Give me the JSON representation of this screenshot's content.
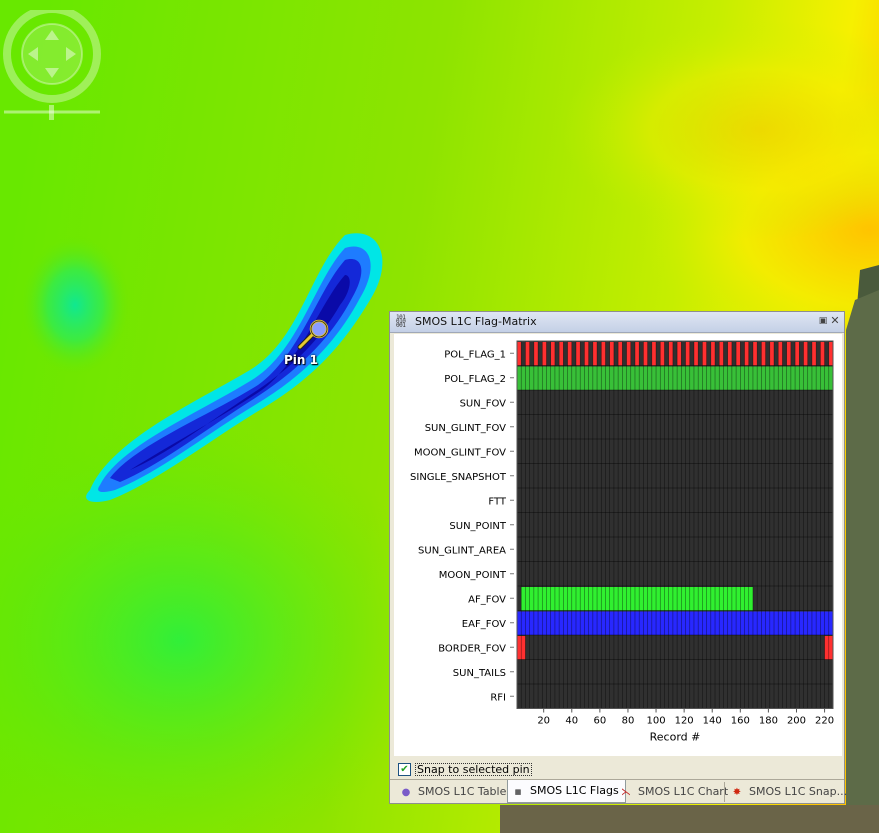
{
  "map": {
    "pin_label": "Pin 1",
    "colors": [
      "#0000c8",
      "#1e64ff",
      "#00e6e6",
      "#00ff64",
      "#7ee000",
      "#c8f000",
      "#ffff00",
      "#ffc800"
    ]
  },
  "panel": {
    "title": "SMOS L1C Flag-Matrix",
    "icons": {
      "title": "flag-matrix-icon",
      "maximize": "maximize-icon",
      "close": "close-icon"
    },
    "snap_label": "Snap to selected pin",
    "snap_checked": true,
    "tabs": [
      {
        "label": "SMOS L1C Table",
        "icon": "table-icon",
        "active": false
      },
      {
        "label": "SMOS L1C Flags",
        "icon": "flag-matrix-icon",
        "active": true
      },
      {
        "label": "SMOS L1C Chart",
        "icon": "chart-icon",
        "active": false
      },
      {
        "label": "SMOS L1C Snap...",
        "icon": "snapshot-icon",
        "active": false
      }
    ]
  },
  "chart_data": {
    "type": "heatmap",
    "xlabel": "Record #",
    "x_ticks": [
      20,
      40,
      60,
      80,
      100,
      120,
      140,
      160,
      180,
      200,
      220
    ],
    "x_range": [
      1,
      225
    ],
    "flags": [
      {
        "name": "POL_FLAG_1",
        "color": "#ff3030",
        "set": "alternating"
      },
      {
        "name": "POL_FLAG_2",
        "color": "#38c038",
        "set": "all"
      },
      {
        "name": "SUN_FOV",
        "color": "#303030",
        "set": "none"
      },
      {
        "name": "SUN_GLINT_FOV",
        "color": "#303030",
        "set": "none"
      },
      {
        "name": "MOON_GLINT_FOV",
        "color": "#303030",
        "set": "none"
      },
      {
        "name": "SINGLE_SNAPSHOT",
        "color": "#303030",
        "set": "none"
      },
      {
        "name": "FTT",
        "color": "#303030",
        "set": "none"
      },
      {
        "name": "SUN_POINT",
        "color": "#303030",
        "set": "none"
      },
      {
        "name": "SUN_GLINT_AREA",
        "color": "#303030",
        "set": "none"
      },
      {
        "name": "MOON_POINT",
        "color": "#303030",
        "set": "none"
      },
      {
        "name": "AF_FOV",
        "color": "#30f030",
        "set": [
          [
            4,
            168
          ]
        ]
      },
      {
        "name": "EAF_FOV",
        "color": "#2828ff",
        "set": "all"
      },
      {
        "name": "BORDER_FOV",
        "color": "#ff3030",
        "set": [
          [
            1,
            6
          ],
          [
            220,
            225
          ]
        ]
      },
      {
        "name": "SUN_TAILS",
        "color": "#303030",
        "set": "none"
      },
      {
        "name": "RFI",
        "color": "#303030",
        "set": "none"
      }
    ]
  }
}
